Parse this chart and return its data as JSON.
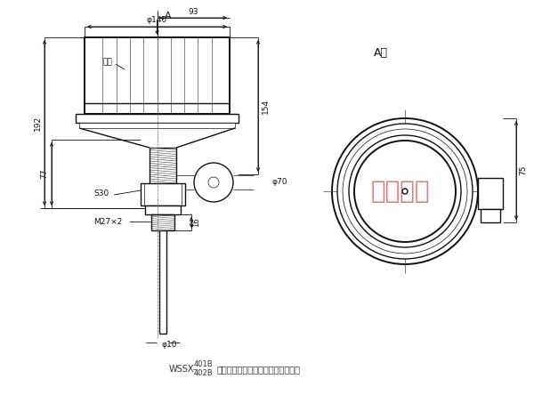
{
  "bg_color": "#ffffff",
  "line_color": "#111111",
  "dim_color": "#111111",
  "watermark_color": "#cc2222",
  "title_line2": "型防爆双金属温度计外形及安装尺岼",
  "label_A": "A",
  "label_Axiang": "A向",
  "label_majie": "帽盖",
  "label_phi140": "φ140",
  "label_93": "93",
  "label_154": "154",
  "label_phi70": "φ70",
  "label_192": "192",
  "label_S30": "S30",
  "label_77": "77",
  "label_16": "16",
  "label_M27x2": "M27×2",
  "label_phi10": "φ10",
  "label_75": "75",
  "watermark_text": "上海坤隆"
}
